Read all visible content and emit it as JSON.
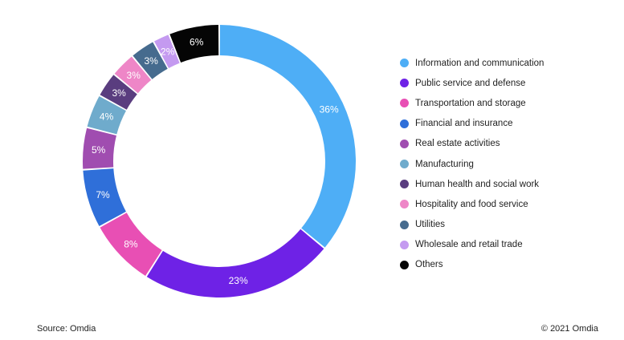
{
  "chart_data": {
    "type": "pie",
    "variant": "donut",
    "series": [
      {
        "name": "Information and communication",
        "value": 36,
        "label": "36%",
        "color": "#4eaef6"
      },
      {
        "name": "Public service and defense",
        "value": 23,
        "label": "23%",
        "color": "#6e22e6"
      },
      {
        "name": "Transportation and storage",
        "value": 8,
        "label": "8%",
        "color": "#e84fb4"
      },
      {
        "name": "Financial and insurance",
        "value": 7,
        "label": "7%",
        "color": "#2f6fd9"
      },
      {
        "name": "Real estate activities",
        "value": 5,
        "label": "5%",
        "color": "#a04db0"
      },
      {
        "name": "Manufacturing",
        "value": 4,
        "label": "4%",
        "color": "#6fabcc"
      },
      {
        "name": "Human health and social work",
        "value": 3,
        "label": "3%",
        "color": "#5a3d7f"
      },
      {
        "name": "Hospitality and food service",
        "value": 3,
        "label": "3%",
        "color": "#ee86c7"
      },
      {
        "name": "Utilities",
        "value": 3,
        "label": "3%",
        "color": "#466b8e"
      },
      {
        "name": "Wholesale and retail trade",
        "value": 2,
        "label": "2%",
        "color": "#c49af0"
      },
      {
        "name": "Others",
        "value": 6,
        "label": "6%",
        "color": "#050505"
      }
    ],
    "legend_position": "right"
  },
  "footer": {
    "source": "Source: Omdia",
    "copyright": "© 2021 Omdia"
  }
}
